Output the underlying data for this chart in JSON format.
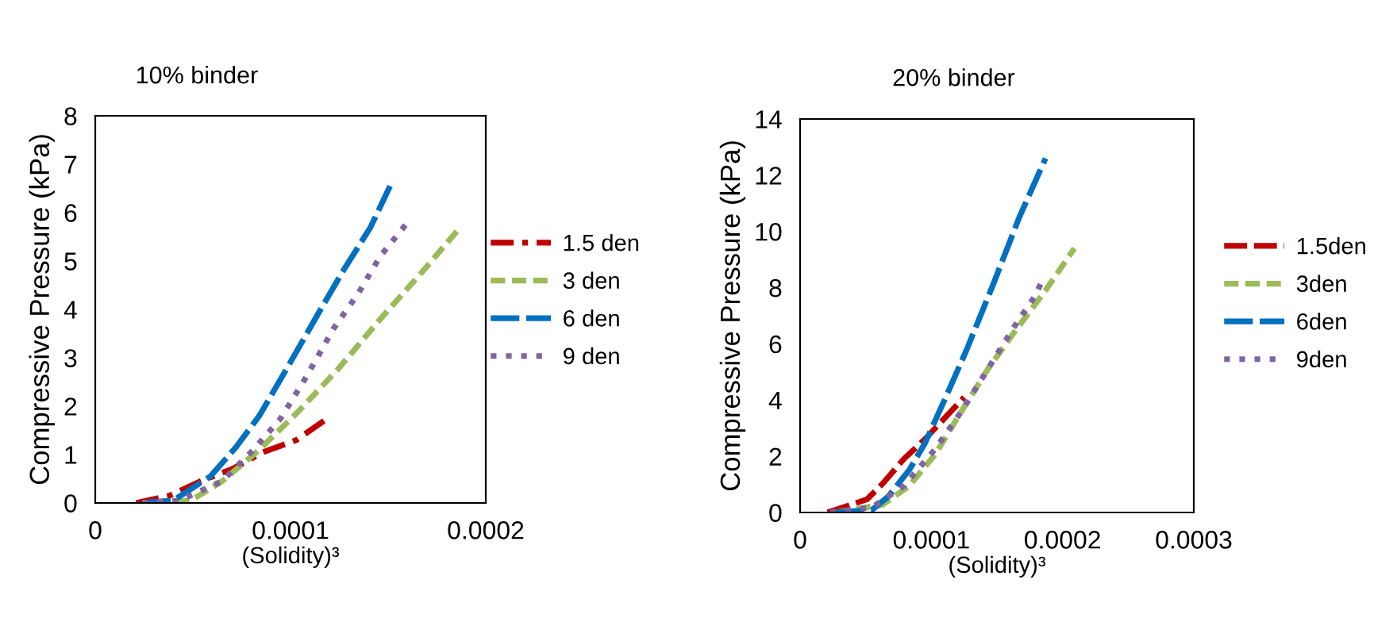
{
  "chart_data": [
    {
      "type": "line",
      "title": "10% binder",
      "xlabel": "(Solidity)³",
      "ylabel": "Compressive Pressure (kPa)",
      "xlim": [
        0,
        0.0002
      ],
      "xticks": [
        0,
        0.0001,
        0.0002
      ],
      "ylim": [
        0,
        8
      ],
      "yticks": [
        0,
        1,
        2,
        3,
        4,
        5,
        6,
        7,
        8
      ],
      "grid": false,
      "legend": "right",
      "marker": "none",
      "series": [
        {
          "name": "1.5 den",
          "color": "#c00000",
          "line_style": "dashed",
          "x": [
            2.1e-05,
            3.8e-05,
            5.4e-05,
            7e-05,
            8.6e-05,
            0.000103,
            0.000119
          ],
          "values": [
            0,
            0.15,
            0.45,
            0.7,
            1.05,
            1.3,
            1.75
          ]
        },
        {
          "name": "3 den",
          "color": "#9bbb59",
          "line_style": "dashed",
          "x": [
            3e-05,
            4.9e-05,
            6.5e-05,
            8.4e-05,
            0.000103,
            0.000124,
            0.000146,
            0.000168,
            0.000187
          ],
          "values": [
            0,
            0.05,
            0.45,
            1.1,
            1.85,
            2.75,
            3.8,
            4.8,
            5.7
          ]
        },
        {
          "name": "6 den",
          "color": "#0070c0",
          "line_style": "dashed",
          "x": [
            2.4e-05,
            4e-05,
            5.9e-05,
            7.2e-05,
            8.4e-05,
            9.7e-05,
            0.000114,
            0.000127,
            0.000141,
            0.000151
          ],
          "values": [
            0,
            0.05,
            0.55,
            1.15,
            1.8,
            2.7,
            3.9,
            4.8,
            5.7,
            6.55
          ]
        },
        {
          "name": "9 den",
          "color": "#8064a2",
          "line_style": "dotted",
          "x": [
            2.4e-05,
            4.3e-05,
            6.5e-05,
            8.1e-05,
            9.5e-05,
            0.000108,
            0.000122,
            0.000135,
            0.000146,
            0.00016
          ],
          "values": [
            0,
            0.05,
            0.45,
            1.1,
            1.75,
            2.6,
            3.6,
            4.35,
            5.1,
            5.8
          ]
        }
      ]
    },
    {
      "type": "line",
      "title": "20% binder",
      "xlabel": "(Solidity)³",
      "ylabel": "Compressive Pressure (kPa)",
      "xlim": [
        0,
        0.0003
      ],
      "xticks": [
        0,
        0.0001,
        0.0002,
        0.0003
      ],
      "ylim": [
        0,
        14
      ],
      "yticks": [
        0,
        2,
        4,
        6,
        8,
        10,
        12,
        14
      ],
      "grid": false,
      "legend": "right",
      "marker": "none",
      "series": [
        {
          "name": "1.5den",
          "color": "#c00000",
          "line_style": "dashed",
          "x": [
            2.1e-05,
            3.9e-05,
            5.1e-05,
            6.3e-05,
            7.9e-05,
            9.5e-05,
            0.000111,
            0.000125
          ],
          "values": [
            0,
            0.28,
            0.47,
            1.03,
            1.9,
            2.6,
            3.4,
            4.1
          ]
        },
        {
          "name": "3den",
          "color": "#9bbb59",
          "line_style": "dashed",
          "x": [
            2.7e-05,
            6.3e-05,
            8.3e-05,
            0.000103,
            0.000123,
            0.000143,
            0.000163,
            0.000187,
            0.000209
          ],
          "values": [
            0,
            0.28,
            0.94,
            2.07,
            3.6,
            5.1,
            6.4,
            7.9,
            9.4
          ]
        },
        {
          "name": "6den",
          "color": "#0070c0",
          "line_style": "dashed",
          "x": [
            2.7e-05,
            5.5e-05,
            6.7e-05,
            8.3e-05,
            9.5e-05,
            0.000111,
            0.000127,
            0.000147,
            0.000167,
            0.000187
          ],
          "values": [
            0,
            0.1,
            0.56,
            1.5,
            2.45,
            4.1,
            5.8,
            8.1,
            10.5,
            12.6
          ]
        },
        {
          "name": "9den",
          "color": "#8064a2",
          "line_style": "dotted",
          "x": [
            2.3e-05,
            5.5e-05,
            7.9e-05,
            0.000103,
            0.000123,
            0.000143,
            0.000163,
            0.000179,
            0.000185
          ],
          "values": [
            0,
            0.19,
            0.94,
            2.26,
            3.6,
            5.1,
            6.6,
            7.7,
            8.3
          ]
        }
      ]
    }
  ]
}
